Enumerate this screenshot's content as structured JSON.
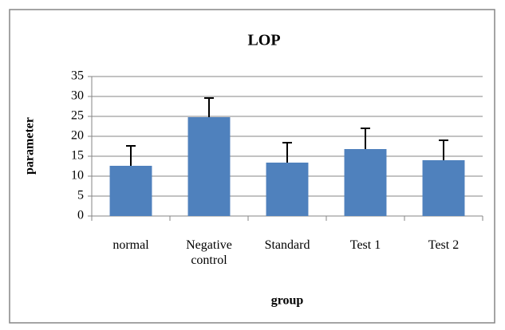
{
  "chart_data": {
    "type": "bar",
    "title": "LOP",
    "x_label": "group",
    "y_label": "parameter",
    "categories": [
      "normal",
      "Negative control",
      "Standard",
      "Test 1",
      "Test 2"
    ],
    "values": [
      12.6,
      24.8,
      13.4,
      16.8,
      14
    ],
    "errors": [
      5,
      4.8,
      5,
      5.2,
      5
    ],
    "color": "#4f81bd",
    "ylim": [
      0,
      35
    ],
    "yticks": [
      0,
      5,
      10,
      15,
      20,
      25,
      30,
      35
    ],
    "grid": true
  }
}
